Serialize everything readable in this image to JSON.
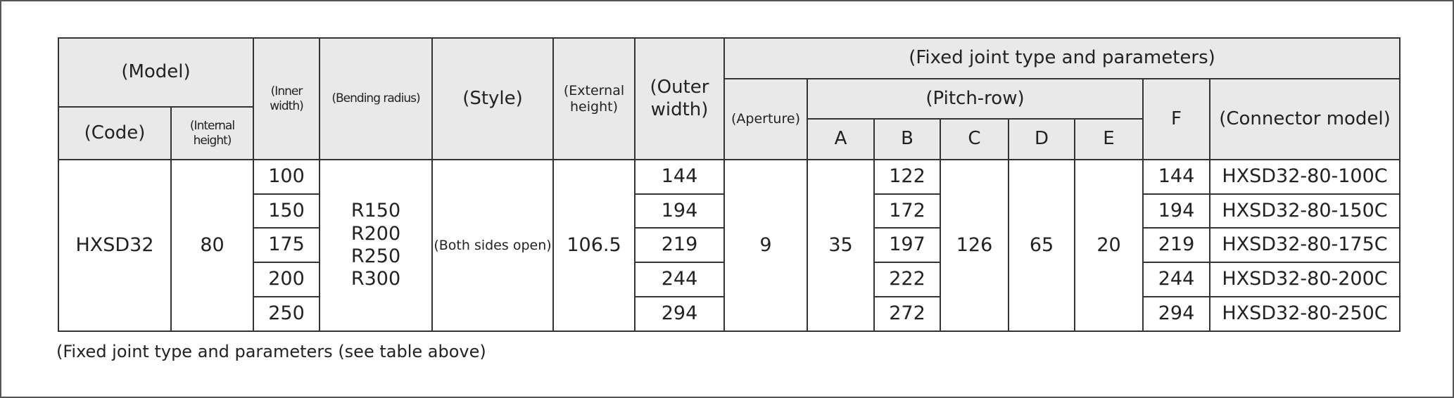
{
  "header": {
    "model": "(Model)",
    "code": "(Code)",
    "internal_height": "(Internal height)",
    "inner_width": "(Inner width)",
    "bending_radius": "(Bending radius)",
    "style": "(Style)",
    "external_height": "(External height)",
    "outer_width": "(Outer width)",
    "fixed_joint": "(Fixed joint type and parameters)",
    "aperture": "(Aperture)",
    "pitch_row": "(Pitch-row)",
    "pitch_cols": [
      "A",
      "B",
      "C",
      "D",
      "E"
    ],
    "f": "F",
    "connector_model": "(Connector model)"
  },
  "table": {
    "code": "HXSD32",
    "internal_height": 80,
    "bending_radius": [
      "R150",
      "R200",
      "R250",
      "R300"
    ],
    "style": "(Both sides open)",
    "external_height": 106.5,
    "aperture": 9,
    "a": 35,
    "c": 126,
    "d": 65,
    "e": 20,
    "rows": [
      {
        "inner_width": 100,
        "outer_width": 144,
        "b": 122,
        "f": 144,
        "connector_model": "HXSD32-80-100C"
      },
      {
        "inner_width": 150,
        "outer_width": 194,
        "b": 172,
        "f": 194,
        "connector_model": "HXSD32-80-150C"
      },
      {
        "inner_width": 175,
        "outer_width": 219,
        "b": 197,
        "f": 219,
        "connector_model": "HXSD32-80-175C"
      },
      {
        "inner_width": 200,
        "outer_width": 244,
        "b": 222,
        "f": 244,
        "connector_model": "HXSD32-80-200C"
      },
      {
        "inner_width": 250,
        "outer_width": 294,
        "b": 272,
        "f": 294,
        "connector_model": "HXSD32-80-250C"
      }
    ]
  },
  "footnote": "(Fixed joint type and parameters (see table above)"
}
